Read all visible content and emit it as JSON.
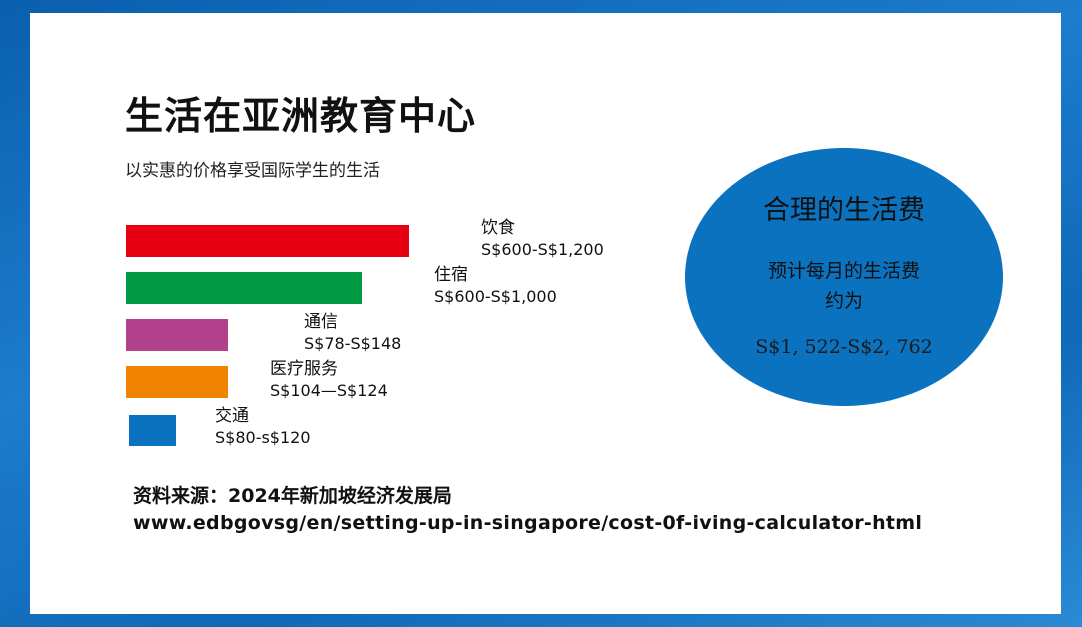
{
  "title": "生活在亚洲教育中心",
  "subtitle": "以实惠的价格享受国际学生的生活",
  "chart_data": {
    "type": "bar",
    "orientation": "horizontal",
    "title": "",
    "categories": [
      "饮食",
      "住宿",
      "通信",
      "医疗服务",
      "交通"
    ],
    "value_labels": [
      "S$600-S$1,200",
      "S$600-S$1,000",
      "S$78-S$148",
      "S$104—S$124",
      "S$80-s$120"
    ],
    "ranges": [
      [
        600,
        1200
      ],
      [
        600,
        1000
      ],
      [
        78,
        148
      ],
      [
        104,
        124
      ],
      [
        80,
        120
      ]
    ],
    "colors": [
      "#e60012",
      "#009944",
      "#b0418a",
      "#f08300",
      "#0b72c0"
    ]
  },
  "summary": {
    "title": "合理的生活费",
    "description_line1": "预计每月的生活费",
    "description_line2": "约为",
    "range": "S$1, 522-S$2, 762",
    "color": "#0b72c0"
  },
  "source": {
    "line1": "资料来源：2024年新加坡经济发展局",
    "url": "www.edbgovsg/en/setting-up-in-singapore/cost-0f-iving-calculator-html"
  }
}
